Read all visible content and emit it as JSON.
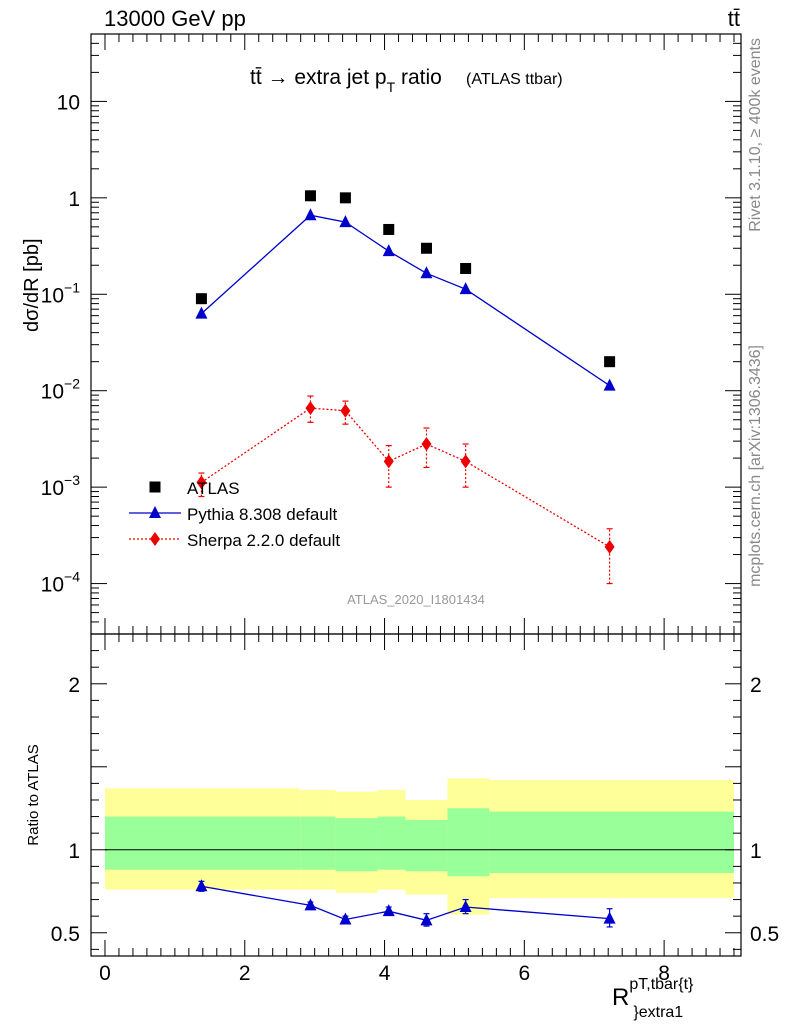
{
  "header": {
    "beam": "13000 GeV pp",
    "process": "tt̄",
    "title_main": "tt̄ → extra jet p",
    "title_sub": "T",
    "title_tail": " ratio",
    "title_tag": "(ATLAS ttbar)",
    "analysis_id": "ATLAS_2020_I1801434",
    "side_rivet": "Rivet 3.1.10, ≥ 400k events",
    "side_mcplots": "mcplots.cern.ch [arXiv:1306.3436]"
  },
  "colors": {
    "data": "#000000",
    "pythia": "#0000cc",
    "sherpa": "#ee0000",
    "band_outer": "#ffff99",
    "band_inner": "#99ff99",
    "side_text": "#888888"
  },
  "chart_data": [
    {
      "type": "scatter",
      "panel": "main",
      "ylabel": "dσ/dR [pb]",
      "yscale": "log",
      "ylim": [
        3e-05,
        50
      ],
      "xlim": [
        -0.2,
        9.1
      ],
      "y_ticks": [
        {
          "value": 0.0001,
          "base": "10",
          "exp": "−4"
        },
        {
          "value": 0.001,
          "base": "10",
          "exp": "−3"
        },
        {
          "value": 0.01,
          "base": "10",
          "exp": "−2"
        },
        {
          "value": 0.1,
          "base": "10",
          "exp": "−1"
        },
        {
          "value": 1,
          "base": "1",
          "exp": ""
        },
        {
          "value": 10,
          "base": "10",
          "exp": ""
        }
      ],
      "series": [
        {
          "name": "ATLAS",
          "marker": "square",
          "x": [
            1.38,
            2.94,
            3.44,
            4.06,
            4.6,
            5.16,
            7.22
          ],
          "y": [
            0.09,
            1.05,
            1.0,
            0.47,
            0.3,
            0.185,
            0.02
          ]
        },
        {
          "name": "Pythia 8.308 default",
          "marker": "triangle",
          "line": "solid",
          "x": [
            1.38,
            2.94,
            3.44,
            4.06,
            4.6,
            5.16,
            7.22
          ],
          "y": [
            0.063,
            0.66,
            0.56,
            0.28,
            0.165,
            0.113,
            0.0113
          ]
        },
        {
          "name": "Sherpa 2.2.0 default",
          "marker": "diamond",
          "line": "dotted",
          "x": [
            1.38,
            2.94,
            3.44,
            4.06,
            4.6,
            5.16,
            7.22
          ],
          "y": [
            0.00112,
            0.0066,
            0.0062,
            0.00185,
            0.0028,
            0.00185,
            0.00024
          ],
          "err_lo": [
            0.0008,
            0.0047,
            0.0045,
            0.001,
            0.0016,
            0.001,
            0.0001
          ],
          "err_hi": [
            0.0014,
            0.0088,
            0.0078,
            0.0027,
            0.0041,
            0.0028,
            0.00037
          ]
        }
      ]
    },
    {
      "type": "line",
      "panel": "ratio",
      "ylabel": "Ratio to ATLAS",
      "xlabel": "R",
      "xlabel_sup": "pT,tbar{t}",
      "xlabel_sub": "}extra1",
      "xlim": [
        -0.2,
        9.1
      ],
      "ylim": [
        0.36,
        2.3
      ],
      "x_ticks": [
        0,
        2,
        4,
        6,
        8
      ],
      "y_ticks": [
        0.5,
        1,
        2
      ],
      "bands": {
        "edges": [
          0,
          2.8,
          3.3,
          3.9,
          4.3,
          4.9,
          5.5,
          9.0
        ],
        "outer_lo": [
          0.76,
          0.76,
          0.74,
          0.76,
          0.73,
          0.61,
          0.71
        ],
        "outer_hi": [
          1.37,
          1.36,
          1.35,
          1.36,
          1.3,
          1.43,
          1.42
        ],
        "inner_lo": [
          0.88,
          0.88,
          0.87,
          0.88,
          0.87,
          0.84,
          0.86
        ],
        "inner_hi": [
          1.2,
          1.2,
          1.19,
          1.2,
          1.18,
          1.25,
          1.23
        ]
      },
      "series": [
        {
          "name": "Pythia 8.308 default",
          "marker": "triangle",
          "line": "solid",
          "x": [
            1.38,
            2.94,
            3.44,
            4.06,
            4.6,
            5.16,
            7.22
          ],
          "y": [
            0.78,
            0.665,
            0.58,
            0.63,
            0.575,
            0.655,
            0.585
          ],
          "err_lo": [
            0.75,
            0.645,
            0.56,
            0.605,
            0.54,
            0.615,
            0.535
          ],
          "err_hi": [
            0.81,
            0.685,
            0.6,
            0.655,
            0.615,
            0.7,
            0.645
          ]
        }
      ]
    }
  ]
}
